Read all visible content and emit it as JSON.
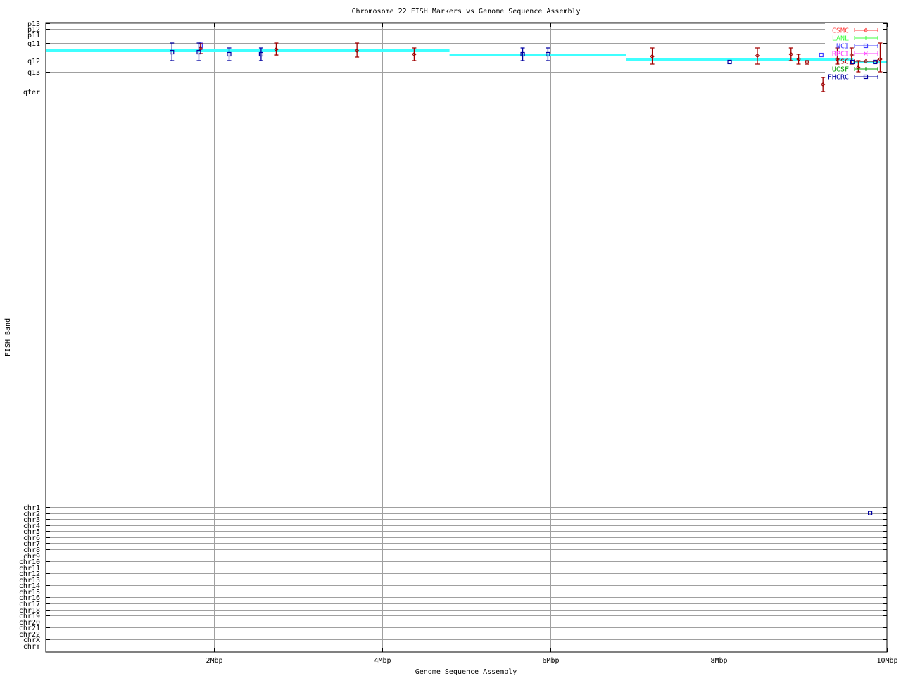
{
  "chart_data": {
    "type": "scatter",
    "title": "Chromosome 22 FISH Markers vs Genome Sequence Assembly",
    "xlabel": "Genome Sequence Assembly",
    "ylabel": "FISH Band",
    "xlim": [
      0,
      10
    ],
    "ylim": [
      0,
      100
    ],
    "y_inverted": true,
    "grid": true,
    "legend_position": "top-right",
    "x_ticks": [
      {
        "value": 2,
        "label": "2Mbp"
      },
      {
        "value": 4,
        "label": "4Mbp"
      },
      {
        "value": 6,
        "label": "6Mbp"
      },
      {
        "value": 8,
        "label": "8Mbp"
      },
      {
        "value": 10,
        "label": "10Mbp"
      }
    ],
    "y_ticks": [
      {
        "value": 0.11,
        "label": "p13"
      },
      {
        "value": 1.01,
        "label": "p12"
      },
      {
        "value": 1.9,
        "label": "p11"
      },
      {
        "value": 3.24,
        "label": "q11"
      },
      {
        "value": 6.04,
        "label": "q12"
      },
      {
        "value": 7.83,
        "label": "q13"
      },
      {
        "value": 10.96,
        "label": "qter"
      },
      {
        "value": 76.96,
        "label": "chr1"
      },
      {
        "value": 77.92,
        "label": "chr2"
      },
      {
        "value": 78.88,
        "label": "chr3"
      },
      {
        "value": 79.83,
        "label": "chr4"
      },
      {
        "value": 80.79,
        "label": "chr5"
      },
      {
        "value": 81.75,
        "label": "chr6"
      },
      {
        "value": 82.71,
        "label": "chr7"
      },
      {
        "value": 83.67,
        "label": "chr8"
      },
      {
        "value": 84.62,
        "label": "chr9"
      },
      {
        "value": 85.58,
        "label": "chr10"
      },
      {
        "value": 86.54,
        "label": "chr11"
      },
      {
        "value": 87.5,
        "label": "chr12"
      },
      {
        "value": 88.46,
        "label": "chr13"
      },
      {
        "value": 89.41,
        "label": "chr14"
      },
      {
        "value": 90.37,
        "label": "chr15"
      },
      {
        "value": 91.33,
        "label": "chr16"
      },
      {
        "value": 92.29,
        "label": "chr17"
      },
      {
        "value": 93.25,
        "label": "chr18"
      },
      {
        "value": 94.2,
        "label": "chr19"
      },
      {
        "value": 95.16,
        "label": "chr20"
      },
      {
        "value": 96.12,
        "label": "chr21"
      },
      {
        "value": 97.08,
        "label": "chr22"
      },
      {
        "value": 98.03,
        "label": "chrX"
      },
      {
        "value": 98.99,
        "label": "chrY"
      }
    ],
    "assembly_line": {
      "color": "#40ffff",
      "steps": [
        {
          "x0": 0,
          "x1": 4.8,
          "y": 4.47
        },
        {
          "x0": 4.8,
          "x1": 6.9,
          "y": 5.15
        },
        {
          "x0": 6.9,
          "x1": 9.6,
          "y": 5.82
        },
        {
          "x0": 9.6,
          "x1": 10,
          "y": 6.26
        }
      ]
    },
    "series": [
      {
        "name": "CSMC",
        "color": "#ff4040",
        "marker": "diamond",
        "points": []
      },
      {
        "name": "LANL",
        "color": "#40ff40",
        "marker": "plus",
        "points": []
      },
      {
        "name": "NCI",
        "color": "#4040ff",
        "marker": "square",
        "points": [
          {
            "x": 1.84,
            "y": 3.69,
            "ylow": 3.24,
            "yhigh": 4.25
          },
          {
            "x": 9.22,
            "y": 5.15
          }
        ]
      },
      {
        "name": "RPCI",
        "color": "#ff40ff",
        "marker": "cross",
        "points": []
      },
      {
        "name": "TSC",
        "color": "#a00000",
        "marker": "diamond",
        "points": [
          {
            "x": 1.84,
            "y": 4.14,
            "ylow": 3.36,
            "yhigh": 4.92
          },
          {
            "x": 2.74,
            "y": 4.25,
            "ylow": 3.24,
            "yhigh": 5.15
          },
          {
            "x": 3.7,
            "y": 4.47,
            "ylow": 3.24,
            "yhigh": 5.48
          },
          {
            "x": 4.38,
            "y": 5.03,
            "ylow": 4.03,
            "yhigh": 6.04
          },
          {
            "x": 7.21,
            "y": 5.37,
            "ylow": 4.03,
            "yhigh": 6.6
          },
          {
            "x": 8.46,
            "y": 5.26,
            "ylow": 4.03,
            "yhigh": 6.6
          },
          {
            "x": 8.86,
            "y": 5.03,
            "ylow": 4.03,
            "yhigh": 6.04
          },
          {
            "x": 8.95,
            "y": 5.82,
            "ylow": 5.03,
            "yhigh": 6.6
          },
          {
            "x": 9.05,
            "y": 6.26,
            "ylow": 6.04,
            "yhigh": 6.6
          },
          {
            "x": 9.24,
            "y": 9.84,
            "ylow": 8.72,
            "yhigh": 10.96
          },
          {
            "x": 9.41,
            "y": 5.82,
            "ylow": 4.03,
            "yhigh": 6.6
          },
          {
            "x": 9.58,
            "y": 5.15,
            "ylow": 4.03,
            "yhigh": 6.6
          },
          {
            "x": 9.66,
            "y": 7.16,
            "ylow": 6.04,
            "yhigh": 7.83
          },
          {
            "x": 9.92,
            "y": 5.82,
            "ylow": 3.24,
            "yhigh": 7.83
          }
        ]
      },
      {
        "name": "UCSF",
        "color": "#00a000",
        "marker": "plus",
        "points": []
      },
      {
        "name": "FHCRC",
        "color": "#0000a0",
        "marker": "square",
        "points": [
          {
            "x": 1.5,
            "y": 4.7,
            "ylow": 3.24,
            "yhigh": 6.04
          },
          {
            "x": 1.82,
            "y": 4.7,
            "ylow": 3.24,
            "yhigh": 6.04
          },
          {
            "x": 2.18,
            "y": 5.03,
            "ylow": 4.03,
            "yhigh": 6.04
          },
          {
            "x": 2.56,
            "y": 5.03,
            "ylow": 4.03,
            "yhigh": 6.04
          },
          {
            "x": 5.67,
            "y": 5.03,
            "ylow": 4.03,
            "yhigh": 6.04
          },
          {
            "x": 5.97,
            "y": 5.03,
            "ylow": 4.03,
            "yhigh": 6.04
          },
          {
            "x": 8.13,
            "y": 6.26
          },
          {
            "x": 9.59,
            "y": 6.26
          },
          {
            "x": 9.86,
            "y": 6.26
          },
          {
            "x": 9.8,
            "y": 77.92
          }
        ]
      }
    ]
  }
}
